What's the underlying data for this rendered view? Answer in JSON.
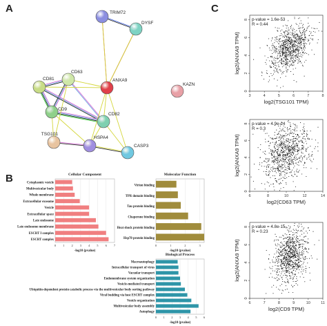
{
  "panels": {
    "a": "A",
    "b": "B",
    "c": "C"
  },
  "network": {
    "nodes": [
      {
        "id": "TRIM72",
        "color": "#8c8fe0"
      },
      {
        "id": "DYSF",
        "color": "#7ed3c3"
      },
      {
        "id": "CD63",
        "color": "#cfe7a8"
      },
      {
        "id": "CD81",
        "color": "#c8dc86"
      },
      {
        "id": "ANXA9",
        "color": "#e0404a"
      },
      {
        "id": "KAZN",
        "color": "#e8a0a6"
      },
      {
        "id": "CD9",
        "color": "#8fd08a"
      },
      {
        "id": "CD82",
        "color": "#7fd0b0"
      },
      {
        "id": "TSG101",
        "color": "#e8c4a0"
      },
      {
        "id": "HSPA4",
        "color": "#a08ee0"
      },
      {
        "id": "CASP3",
        "color": "#70c8e0"
      }
    ]
  },
  "go": {
    "cc": {
      "title": "Cellular Component",
      "xlabel": "-log10 (pvalue)",
      "color": "#f07f80",
      "ticks": [
        "0",
        "1",
        "2",
        "3",
        "4",
        "5",
        "6",
        "7"
      ],
      "xmax": 7,
      "categories": [
        "Cytoplasmic vesicle",
        "Multivesicular body",
        "Whole membrane",
        "Extracellular exosome",
        "Vesicle",
        "Extracellular space",
        "Late endosome",
        "Late endosome membrane",
        "ESCRT I complex",
        "ESCRT complex"
      ],
      "values": [
        2.0,
        2.1,
        2.3,
        2.9,
        4.0,
        4.0,
        4.8,
        5.1,
        6.0,
        6.3
      ]
    },
    "mf": {
      "title": "Molecular Function",
      "xlabel": "-log10 (pvalue)",
      "color": "#a08c3c",
      "ticks": [
        "0",
        "1",
        "2",
        "3"
      ],
      "xmax": 3.3,
      "categories": [
        "Virion binding",
        "TPR domain binding",
        "Tau protein binding",
        "Chaperone binding",
        "Heat shock protein binding",
        "Hsp70 protein binding"
      ],
      "values": [
        1.4,
        1.5,
        1.7,
        2.2,
        3.1,
        3.3
      ]
    },
    "bp": {
      "title": "Biological Process",
      "xlabel": "-log10 (pvalue)",
      "color": "#2e95a8",
      "ticks": [
        "0",
        "1",
        "2",
        "3",
        "4",
        "5",
        "6"
      ],
      "xmax": 6,
      "categories": [
        "Macroautophagy",
        "Intracellular transport of virus",
        "Vacuolar transport",
        "Endomembrane system organization",
        "Vesicle-mediated transport",
        "Ubiquitin-dependent protein catabolic process via the multivesicular body sorting pathway",
        "Viral budding via host ESCRT complex",
        "Vesicle organization",
        "Multivesicular body assembly",
        "Autophagy"
      ],
      "values": [
        2.7,
        2.8,
        2.8,
        3.0,
        3.1,
        3.6,
        3.9,
        4.4,
        5.3,
        4.3
      ]
    }
  },
  "scatter": [
    {
      "pvalue": "p-value = 1.6e-53",
      "r": "R = 0.44",
      "xlabel": "log2(TSG101 TPM)",
      "ylabel": "log2(ANXA9 TPM)",
      "xticks": [
        "3",
        "4",
        "5",
        "6",
        "7",
        "8"
      ],
      "yticks": [
        "0",
        "2",
        "4",
        "6",
        "8"
      ],
      "xlim": [
        3,
        8
      ],
      "ylim": [
        0,
        8.5
      ]
    },
    {
      "pvalue": "p-value = 4.9e-24",
      "r": "R = 0.3",
      "xlabel": "log2(CD63 TPM)",
      "ylabel": "log2(ANXA9 TPM)",
      "xticks": [
        "6",
        "8",
        "10",
        "12",
        "14"
      ],
      "yticks": [
        "0",
        "2",
        "4",
        "6",
        "8"
      ],
      "xlim": [
        6,
        14
      ],
      "ylim": [
        0,
        8.5
      ]
    },
    {
      "pvalue": "p-value = 4.8e-15",
      "r": "R = 0.23",
      "xlabel": "log2(CD9 TPM)",
      "ylabel": "log2(ANXA9 TPM)",
      "xticks": [
        "6",
        "7",
        "8",
        "9",
        "10",
        "11"
      ],
      "yticks": [
        "0",
        "2",
        "4",
        "6",
        "8"
      ],
      "xlim": [
        6,
        11
      ],
      "ylim": [
        0,
        8.5
      ]
    }
  ]
}
